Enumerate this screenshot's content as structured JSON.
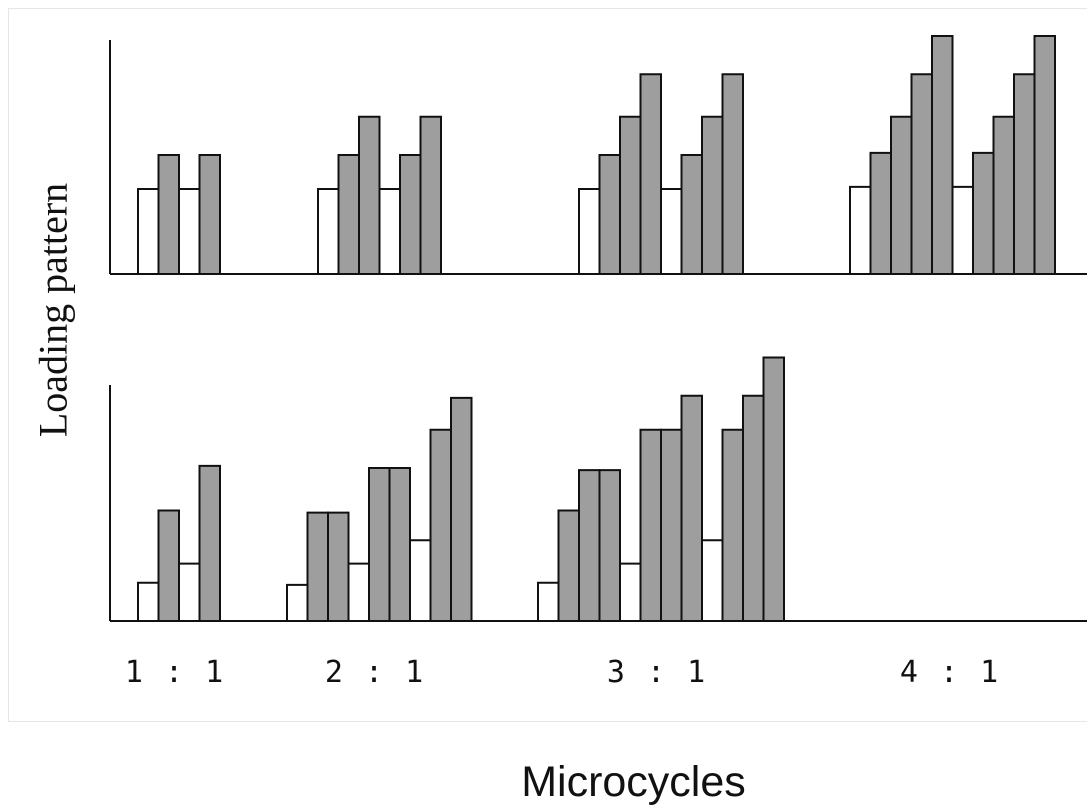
{
  "chart_data": {
    "type": "bar",
    "ylabel": "Loading pattern",
    "xlabel": "Microcycles",
    "categories": [
      "1 : 1",
      "2 : 1",
      "3 : 1",
      "4 : 1"
    ],
    "legend": "none",
    "grid": false,
    "colors": {
      "loading_week": "#9e9e9e",
      "recovery_week": "#ffffff",
      "outline": "#111111"
    },
    "value_units": "relative (unlabeled axis)",
    "panels": [
      {
        "name": "",
        "groups": [
          [
            {
              "v": 2.0,
              "type": "recovery"
            },
            {
              "v": 2.8,
              "type": "loading"
            },
            {
              "v": 2.0,
              "type": "recovery"
            },
            {
              "v": 2.8,
              "type": "loading"
            }
          ],
          [
            {
              "v": 2.0,
              "type": "recovery"
            },
            {
              "v": 2.8,
              "type": "loading"
            },
            {
              "v": 3.7,
              "type": "loading"
            },
            {
              "v": 2.0,
              "type": "recovery"
            },
            {
              "v": 2.8,
              "type": "loading"
            },
            {
              "v": 3.7,
              "type": "loading"
            }
          ],
          [
            {
              "v": 2.0,
              "type": "recovery"
            },
            {
              "v": 2.8,
              "type": "loading"
            },
            {
              "v": 3.7,
              "type": "loading"
            },
            {
              "v": 4.7,
              "type": "loading"
            },
            {
              "v": 2.0,
              "type": "recovery"
            },
            {
              "v": 2.8,
              "type": "loading"
            },
            {
              "v": 3.7,
              "type": "loading"
            },
            {
              "v": 4.7,
              "type": "loading"
            }
          ],
          [
            {
              "v": 2.05,
              "type": "recovery"
            },
            {
              "v": 2.85,
              "type": "loading"
            },
            {
              "v": 3.7,
              "type": "loading"
            },
            {
              "v": 4.7,
              "type": "loading"
            },
            {
              "v": 5.6,
              "type": "loading"
            },
            {
              "v": 2.05,
              "type": "recovery"
            },
            {
              "v": 2.85,
              "type": "loading"
            },
            {
              "v": 3.7,
              "type": "loading"
            },
            {
              "v": 4.7,
              "type": "loading"
            },
            {
              "v": 5.6,
              "type": "loading"
            }
          ]
        ]
      },
      {
        "name": "",
        "groups": [
          [
            {
              "v": 0.9,
              "type": "recovery"
            },
            {
              "v": 2.6,
              "type": "loading"
            },
            {
              "v": 1.35,
              "type": "recovery"
            },
            {
              "v": 3.65,
              "type": "loading"
            }
          ],
          [
            {
              "v": 0.85,
              "type": "recovery"
            },
            {
              "v": 2.55,
              "type": "loading"
            },
            {
              "v": 2.55,
              "type": "loading"
            },
            {
              "v": 1.35,
              "type": "recovery"
            },
            {
              "v": 3.6,
              "type": "loading"
            },
            {
              "v": 3.6,
              "type": "loading"
            },
            {
              "v": 1.9,
              "type": "recovery"
            },
            {
              "v": 4.5,
              "type": "loading"
            },
            {
              "v": 5.25,
              "type": "loading"
            }
          ],
          [
            {
              "v": 0.9,
              "type": "recovery"
            },
            {
              "v": 2.6,
              "type": "loading"
            },
            {
              "v": 3.55,
              "type": "loading"
            },
            {
              "v": 3.55,
              "type": "loading"
            },
            {
              "v": 1.35,
              "type": "recovery"
            },
            {
              "v": 4.5,
              "type": "loading"
            },
            {
              "v": 4.5,
              "type": "loading"
            },
            {
              "v": 5.3,
              "type": "loading"
            },
            {
              "v": 1.9,
              "type": "recovery"
            },
            {
              "v": 4.5,
              "type": "loading"
            },
            {
              "v": 5.3,
              "type": "loading"
            },
            {
              "v": 6.2,
              "type": "loading"
            }
          ]
        ]
      }
    ]
  }
}
